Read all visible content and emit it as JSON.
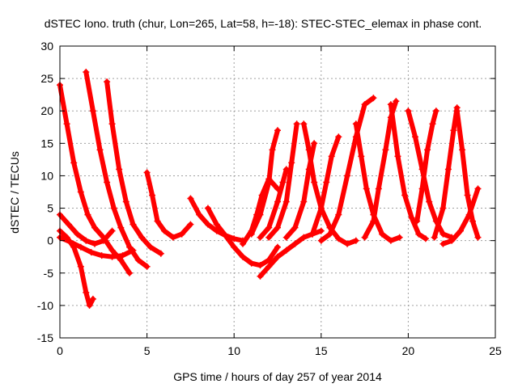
{
  "chart_data": {
    "type": "scatter",
    "title": "dSTEC Iono. truth (chur, Lon=265, Lat=58, h=-18): STEC-STEC_elemax in phase cont.",
    "xlabel": "GPS time / hours of day 257 of year 2014",
    "ylabel": "dSTEC  / TECUs",
    "xlim": [
      0,
      25
    ],
    "ylim": [
      -15,
      30
    ],
    "xticks": [
      0,
      5,
      10,
      15,
      20,
      25
    ],
    "yticks": [
      -15,
      -10,
      -5,
      0,
      5,
      10,
      15,
      20,
      25,
      30
    ],
    "grid": true,
    "legend": "none",
    "marker": "+",
    "color": "#ff0000",
    "series": [
      {
        "x": [
          0.0,
          0.4,
          0.8,
          1.2,
          1.5,
          1.7,
          1.9
        ],
        "y": [
          1.5,
          0.5,
          -1.0,
          -4.0,
          -8.0,
          -10.0,
          -9.0
        ]
      },
      {
        "x": [
          0.0,
          0.4,
          0.8,
          1.2,
          1.6,
          2.0,
          2.5,
          3.0,
          3.5,
          4.0
        ],
        "y": [
          24.0,
          18.0,
          12.0,
          7.5,
          4.0,
          2.0,
          0.5,
          -1.5,
          -3.0,
          -5.0
        ]
      },
      {
        "x": [
          0.0,
          0.5,
          1.0,
          1.5,
          2.0,
          2.5,
          3.0
        ],
        "y": [
          4.0,
          2.5,
          1.0,
          0.0,
          -0.5,
          0.0,
          1.5
        ]
      },
      {
        "x": [
          1.5,
          1.9,
          2.3,
          2.7,
          3.1,
          3.5,
          4.0,
          4.5,
          5.0
        ],
        "y": [
          26.0,
          20.0,
          14.0,
          9.0,
          5.0,
          2.0,
          -1.0,
          -3.0,
          -4.0
        ]
      },
      {
        "x": [
          2.7,
          3.0,
          3.4,
          3.8,
          4.2,
          4.7,
          5.2,
          5.8
        ],
        "y": [
          24.5,
          18.0,
          11.0,
          6.0,
          2.5,
          0.5,
          -1.0,
          -2.0
        ]
      },
      {
        "x": [
          0.0,
          0.6,
          1.2,
          1.8,
          2.4,
          3.0,
          3.6,
          4.2
        ],
        "y": [
          0.5,
          -0.2,
          -1.0,
          -1.8,
          -2.3,
          -2.5,
          -2.3,
          -1.5
        ]
      },
      {
        "x": [
          5.0,
          5.3,
          5.6,
          6.0,
          6.5,
          7.0,
          7.5
        ],
        "y": [
          10.5,
          7.0,
          3.0,
          1.5,
          0.5,
          1.0,
          2.5
        ]
      },
      {
        "x": [
          7.5,
          8.0,
          8.5,
          9.0,
          9.5,
          10.0,
          10.5
        ],
        "y": [
          6.5,
          4.0,
          2.5,
          1.5,
          0.8,
          0.3,
          0.0
        ]
      },
      {
        "x": [
          8.5,
          9.0,
          9.5,
          10.0,
          10.5,
          11.0,
          11.5,
          12.0,
          12.5
        ],
        "y": [
          5.0,
          2.5,
          0.8,
          -1.0,
          -2.5,
          -3.5,
          -3.8,
          -3.0,
          -1.0
        ]
      },
      {
        "x": [
          10.5,
          11.0,
          11.3,
          11.6,
          12.0,
          12.5
        ],
        "y": [
          -0.5,
          1.5,
          4.0,
          7.0,
          9.5,
          8.0
        ]
      },
      {
        "x": [
          11.5,
          12.0,
          12.5,
          13.0,
          13.5,
          14.0,
          14.5,
          15.0
        ],
        "y": [
          -5.5,
          -4.0,
          -2.5,
          -1.5,
          -0.5,
          0.5,
          1.0,
          1.5
        ]
      },
      {
        "x": [
          11.0,
          11.5,
          12.0,
          12.2,
          12.5
        ],
        "y": [
          1.0,
          4.0,
          9.0,
          14.0,
          17.0
        ]
      },
      {
        "x": [
          11.5,
          12.0,
          12.5,
          12.8,
          13.0
        ],
        "y": [
          0.5,
          2.0,
          6.0,
          9.0,
          11.0
        ]
      },
      {
        "x": [
          12.0,
          12.5,
          13.0,
          13.3,
          13.6
        ],
        "y": [
          0.5,
          2.0,
          6.0,
          12.0,
          18.0
        ]
      },
      {
        "x": [
          13.0,
          13.5,
          14.0,
          14.3,
          14.6
        ],
        "y": [
          0.5,
          2.0,
          6.0,
          11.0,
          15.0
        ]
      },
      {
        "x": [
          14.0,
          14.3,
          14.6,
          15.0,
          15.5,
          16.0,
          16.5,
          17.0
        ],
        "y": [
          18.0,
          14.0,
          9.0,
          5.0,
          2.0,
          0.3,
          -0.5,
          0.0
        ]
      },
      {
        "x": [
          14.5,
          15.0,
          15.3,
          15.6,
          16.0
        ],
        "y": [
          1.0,
          5.0,
          9.0,
          13.0,
          16.0
        ]
      },
      {
        "x": [
          15.0,
          15.5,
          16.0,
          16.5,
          17.0,
          17.5,
          18.0
        ],
        "y": [
          0.0,
          1.0,
          4.0,
          10.0,
          16.0,
          21.0,
          22.0
        ]
      },
      {
        "x": [
          17.0,
          17.3,
          17.6,
          18.0,
          18.5,
          19.0,
          19.5
        ],
        "y": [
          18.0,
          13.0,
          8.0,
          4.0,
          1.0,
          0.0,
          0.5
        ]
      },
      {
        "x": [
          17.5,
          18.0,
          18.3,
          18.7,
          19.0,
          19.3
        ],
        "y": [
          0.5,
          3.0,
          8.0,
          14.0,
          19.0,
          21.5
        ]
      },
      {
        "x": [
          19.0,
          19.4,
          19.8,
          20.2,
          20.6,
          21.0
        ],
        "y": [
          21.0,
          13.0,
          7.0,
          3.5,
          1.0,
          0.3
        ]
      },
      {
        "x": [
          20.0,
          20.4,
          20.8,
          21.2,
          21.6,
          22.0,
          22.5
        ],
        "y": [
          20.0,
          16.0,
          11.0,
          6.0,
          3.0,
          1.0,
          0.5
        ]
      },
      {
        "x": [
          20.5,
          20.8,
          21.1,
          21.4,
          21.6
        ],
        "y": [
          3.0,
          8.0,
          14.0,
          18.0,
          20.0
        ]
      },
      {
        "x": [
          21.5,
          22.0,
          22.3,
          22.6,
          22.8
        ],
        "y": [
          0.5,
          5.0,
          11.0,
          17.0,
          20.5
        ]
      },
      {
        "x": [
          22.8,
          23.1,
          23.4,
          23.7,
          24.0
        ],
        "y": [
          20.0,
          14.0,
          7.0,
          3.0,
          0.5
        ]
      },
      {
        "x": [
          22.0,
          22.5,
          23.0,
          23.5,
          24.0
        ],
        "y": [
          -0.5,
          0.0,
          1.5,
          4.0,
          8.0
        ]
      }
    ]
  }
}
